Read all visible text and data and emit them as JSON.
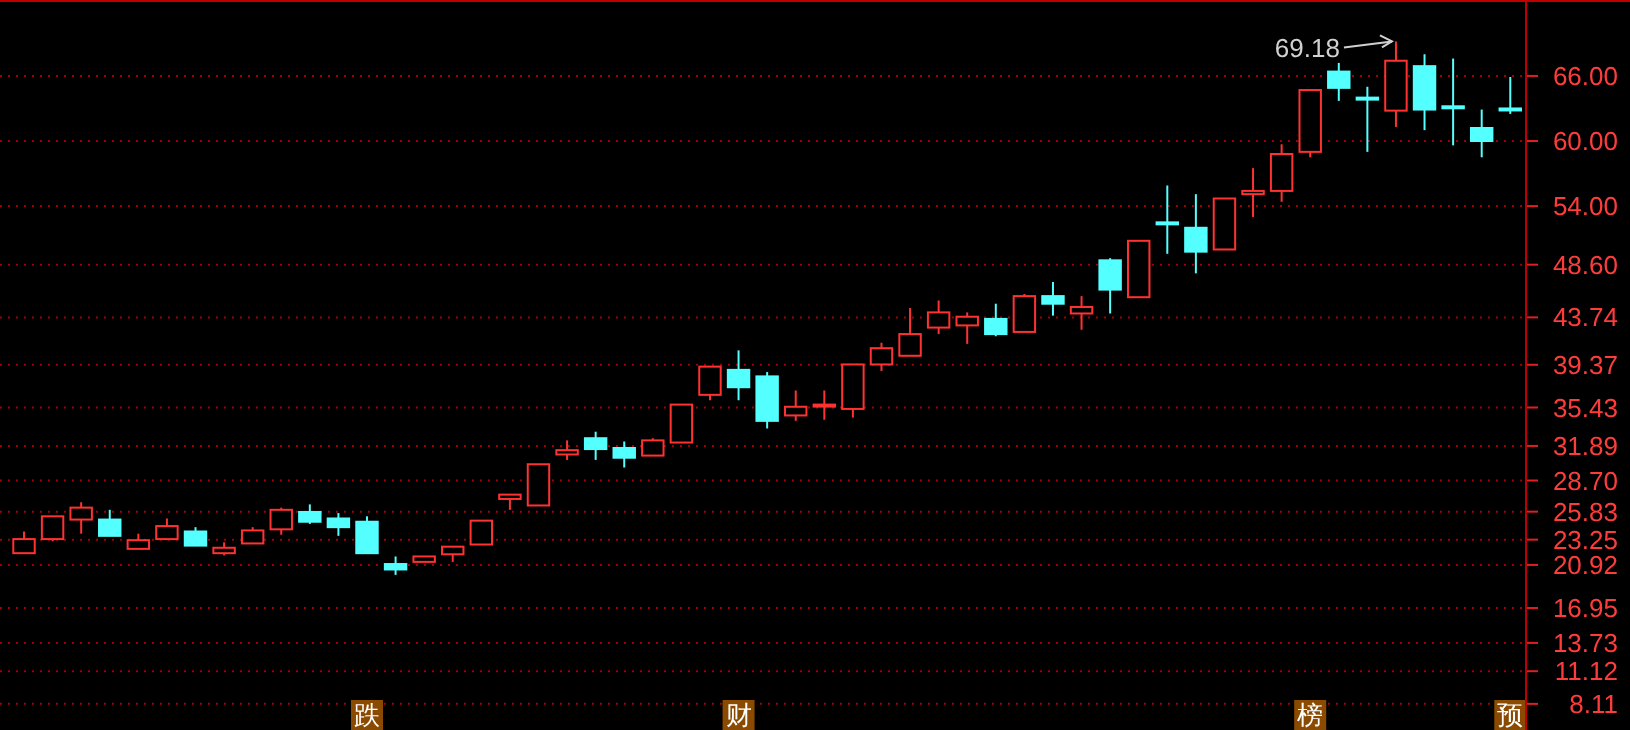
{
  "chart_data": {
    "type": "candlestick",
    "categories": [
      null,
      null,
      null,
      null,
      null,
      null,
      null,
      null,
      null,
      null,
      null,
      null,
      "跌",
      null,
      null,
      null,
      null,
      null,
      null,
      null,
      null,
      null,
      null,
      null,
      null,
      "财",
      null,
      null,
      null,
      null,
      null,
      null,
      null,
      null,
      null,
      null,
      null,
      null,
      null,
      null,
      null,
      null,
      null,
      null,
      null,
      "榜",
      null,
      null,
      null,
      null,
      null,
      null,
      "预"
    ],
    "ohlc": [
      [
        22.0,
        24.0,
        22.0,
        23.3
      ],
      [
        23.3,
        25.4,
        23.1,
        25.4
      ],
      [
        25.1,
        26.7,
        23.8,
        26.2
      ],
      [
        25.1,
        26.0,
        23.6,
        23.6
      ],
      [
        22.4,
        23.8,
        22.4,
        23.2
      ],
      [
        23.3,
        25.2,
        23.3,
        24.5
      ],
      [
        24.0,
        24.4,
        22.7,
        22.7
      ],
      [
        22.0,
        23.0,
        21.8,
        22.5
      ],
      [
        22.9,
        24.4,
        22.9,
        24.1
      ],
      [
        24.2,
        26.2,
        23.7,
        26.0
      ],
      [
        25.8,
        26.5,
        24.7,
        24.9
      ],
      [
        25.2,
        25.7,
        23.6,
        24.4
      ],
      [
        24.9,
        25.4,
        22.0,
        22.0
      ],
      [
        21.0,
        21.7,
        20.0,
        20.5
      ],
      [
        21.2,
        21.7,
        21.2,
        21.7
      ],
      [
        21.9,
        22.6,
        21.2,
        22.6
      ],
      [
        22.8,
        25.0,
        22.8,
        25.0
      ],
      [
        27.0,
        27.4,
        26.0,
        27.4
      ],
      [
        26.4,
        30.2,
        26.4,
        30.2
      ],
      [
        31.1,
        32.4,
        30.6,
        31.5
      ],
      [
        32.6,
        33.2,
        30.6,
        31.6
      ],
      [
        31.7,
        32.3,
        29.9,
        30.8
      ],
      [
        31.0,
        32.6,
        31.0,
        32.4
      ],
      [
        32.2,
        35.7,
        32.2,
        35.7
      ],
      [
        36.6,
        39.2,
        36.1,
        39.2
      ],
      [
        38.9,
        40.7,
        36.1,
        37.3
      ],
      [
        38.3,
        38.7,
        33.5,
        34.2
      ],
      [
        34.7,
        37.0,
        34.2,
        35.5
      ],
      [
        35.6,
        37.0,
        34.3,
        35.7
      ],
      [
        35.3,
        39.4,
        34.5,
        39.4
      ],
      [
        39.4,
        41.4,
        38.8,
        40.9
      ],
      [
        40.2,
        44.6,
        40.2,
        42.2
      ],
      [
        42.8,
        45.3,
        42.2,
        44.2
      ],
      [
        43.0,
        44.2,
        41.3,
        43.8
      ],
      [
        43.6,
        45.0,
        42.0,
        42.2
      ],
      [
        42.4,
        45.9,
        42.4,
        45.7
      ],
      [
        45.7,
        47.0,
        43.9,
        45.0
      ],
      [
        44.1,
        45.7,
        42.6,
        44.7
      ],
      [
        49.0,
        49.2,
        44.1,
        46.3
      ],
      [
        45.6,
        50.8,
        45.6,
        50.8
      ],
      [
        52.5,
        55.9,
        49.6,
        52.4
      ],
      [
        52.0,
        55.1,
        47.8,
        49.8
      ],
      [
        50.0,
        54.7,
        50.0,
        54.7
      ],
      [
        55.1,
        57.5,
        53.0,
        55.4
      ],
      [
        55.4,
        59.7,
        54.4,
        58.8
      ],
      [
        59.0,
        64.7,
        58.5,
        64.7
      ],
      [
        66.4,
        67.2,
        63.7,
        64.9
      ],
      [
        64.0,
        65.0,
        59.0,
        63.9
      ],
      [
        62.8,
        69.18,
        61.3,
        67.4
      ],
      [
        66.9,
        68.0,
        61.0,
        62.9
      ],
      [
        63.2,
        67.6,
        59.6,
        63.1
      ],
      [
        61.2,
        62.9,
        58.5,
        60.0
      ],
      [
        63.0,
        65.9,
        62.5,
        62.9
      ]
    ],
    "colors": [
      "#ff3232",
      "#ff3232",
      "#ff3232",
      "#54ffff",
      "#ff3232",
      "#ff3232",
      "#54ffff",
      "#ff3232",
      "#ff3232",
      "#ff3232",
      "#54ffff",
      "#54ffff",
      "#54ffff",
      "#54ffff",
      "#ff3232",
      "#ff3232",
      "#ff3232",
      "#ff3232",
      "#ff3232",
      "#ff3232",
      "#54ffff",
      "#54ffff",
      "#ff3232",
      "#ff3232",
      "#ff3232",
      "#54ffff",
      "#54ffff",
      "#ff3232",
      "#ff3232",
      "#ff3232",
      "#ff3232",
      "#ff3232",
      "#ff3232",
      "#ff3232",
      "#54ffff",
      "#ff3232",
      "#54ffff",
      "#ff3232",
      "#54ffff",
      "#ff3232",
      "#54ffff",
      "#54ffff",
      "#ff3232",
      "#ff3232",
      "#ff3232",
      "#ff3232",
      "#54ffff",
      "#54ffff",
      "#ff3232",
      "#54ffff",
      "#54ffff",
      "#54ffff",
      "#54ffff"
    ],
    "ylim": [
      5.7,
      73.0
    ],
    "yticks": [
      {
        "value": 66,
        "label": "66.00"
      },
      {
        "value": 60,
        "label": "60.00"
      },
      {
        "value": 54,
        "label": "54.00"
      },
      {
        "value": 48.6,
        "label": "48.60"
      },
      {
        "value": 43.74,
        "label": "43.74"
      },
      {
        "value": 39.37,
        "label": "39.37"
      },
      {
        "value": 35.43,
        "label": "35.43"
      },
      {
        "value": 31.89,
        "label": "31.89"
      },
      {
        "value": 28.7,
        "label": "28.70"
      },
      {
        "value": 25.83,
        "label": "25.83"
      },
      {
        "value": 23.25,
        "label": "23.25"
      },
      {
        "value": 20.92,
        "label": "20.92"
      },
      {
        "value": 16.95,
        "label": "16.95"
      },
      {
        "value": 13.73,
        "label": "13.73"
      },
      {
        "value": 11.12,
        "label": "11.12"
      },
      {
        "value": 8.11,
        "label": "8.11"
      }
    ],
    "grid": "y",
    "annotations": [
      "69.18"
    ]
  }
}
